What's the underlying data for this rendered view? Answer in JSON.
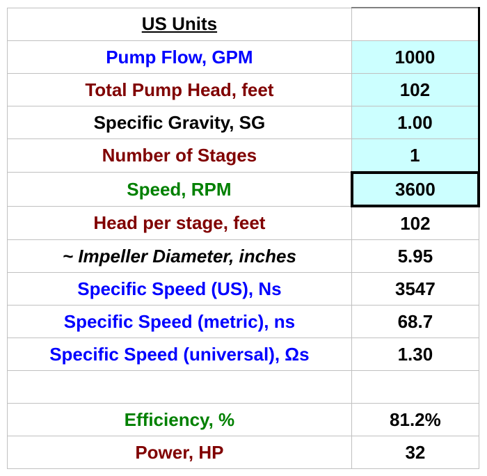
{
  "table": {
    "header": "US Units",
    "rows": [
      {
        "label": "Pump Flow, GPM",
        "value": "1000",
        "labelColor": "#0000ff",
        "highlight": true,
        "italic": false
      },
      {
        "label": "Total Pump Head, feet",
        "value": "102",
        "labelColor": "#800000",
        "highlight": true,
        "italic": false
      },
      {
        "label": "Specific Gravity, SG",
        "value": "1.00",
        "labelColor": "#000000",
        "highlight": true,
        "italic": false
      },
      {
        "label": "Number of Stages",
        "value": "1",
        "labelColor": "#800000",
        "highlight": true,
        "italic": false
      },
      {
        "label": "Speed, RPM",
        "value": "3600",
        "labelColor": "#008000",
        "highlight": true,
        "italic": false,
        "selected": true
      },
      {
        "label": "Head per stage, feet",
        "value": "102",
        "labelColor": "#800000",
        "highlight": false,
        "italic": false
      },
      {
        "label": "~ Impeller Diameter, inches",
        "value": "5.95",
        "labelColor": "#000000",
        "highlight": false,
        "italic": true
      },
      {
        "label": "Specific Speed (US), Ns",
        "value": "3547",
        "labelColor": "#0000ff",
        "highlight": false,
        "italic": false
      },
      {
        "label": "Specific Speed (metric), ns",
        "value": "68.7",
        "labelColor": "#0000ff",
        "highlight": false,
        "italic": false
      },
      {
        "label": "Specific Speed (universal), Ωs",
        "value": "1.30",
        "labelColor": "#0000ff",
        "highlight": false,
        "italic": false
      }
    ],
    "spacerRow": true,
    "footerRows": [
      {
        "label": "Efficiency, %",
        "value": "81.2%",
        "labelColor": "#008000"
      },
      {
        "label": "Power, HP",
        "value": "32",
        "labelColor": "#800000"
      }
    ]
  },
  "colors": {
    "gridline": "#c0c0c0",
    "highlight_bg": "#ccffff",
    "selected_border": "#000000",
    "text_black": "#000000"
  }
}
